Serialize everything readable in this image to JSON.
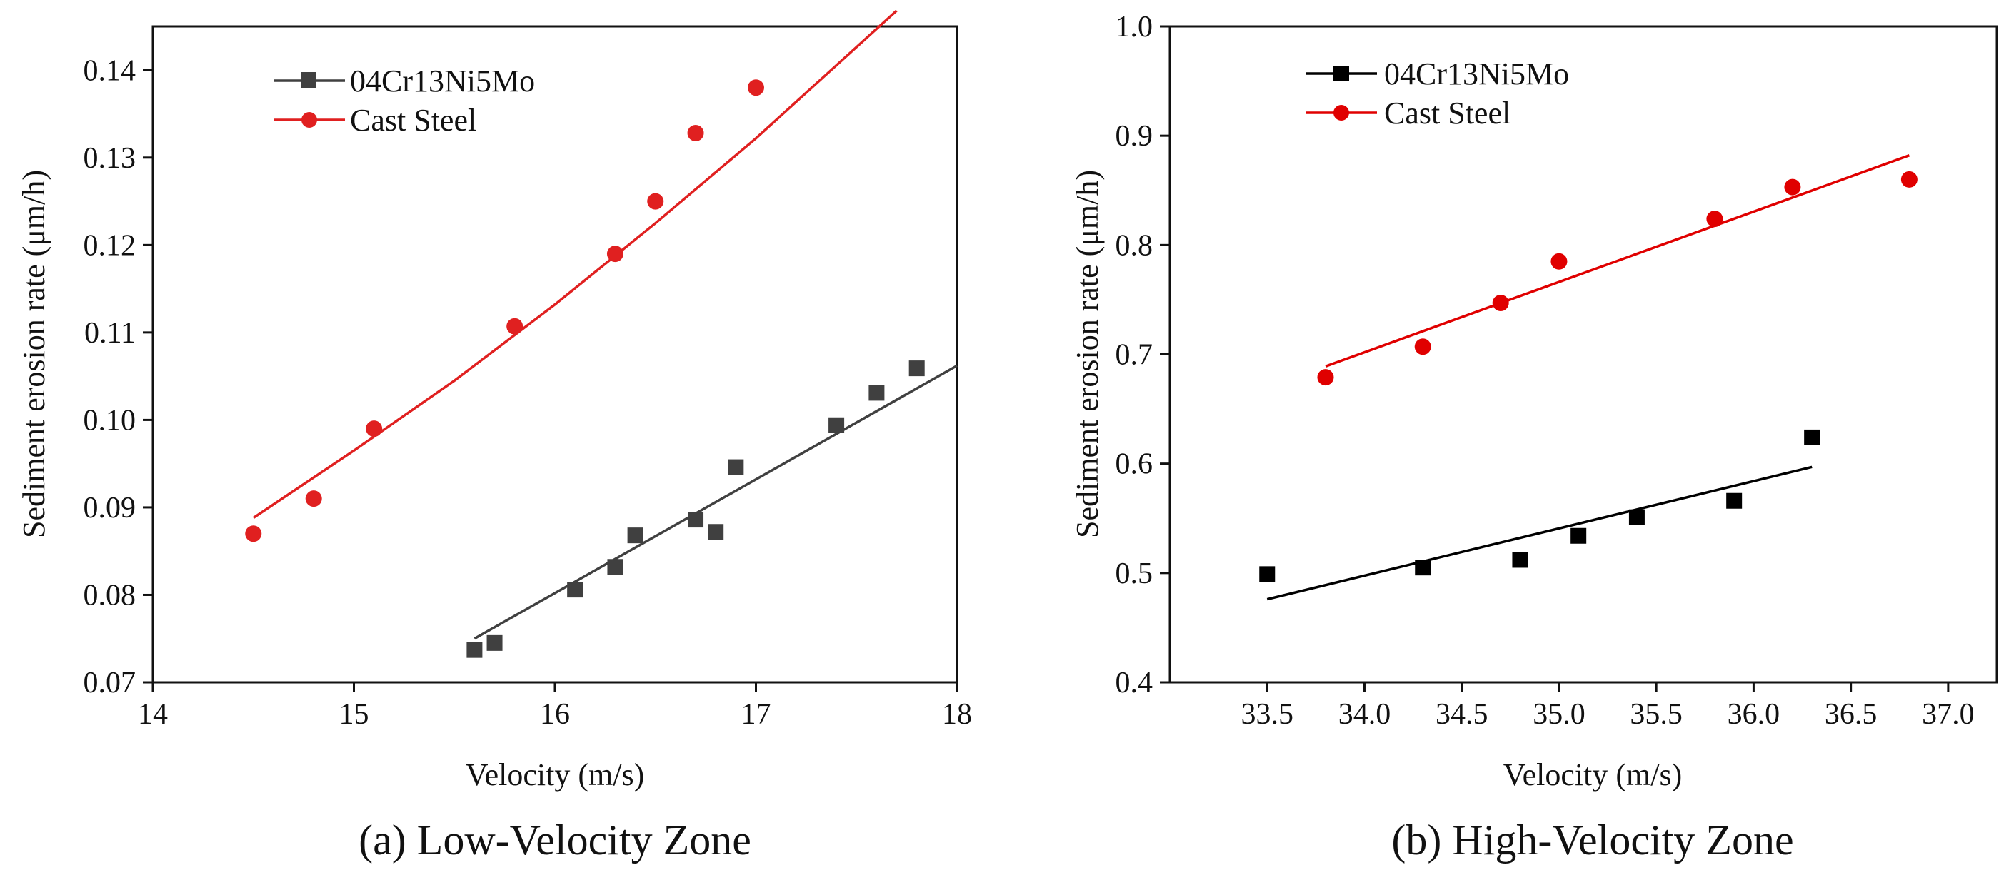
{
  "chart_data": [
    {
      "type": "scatter",
      "caption": "(a) Low-Velocity Zone",
      "xlabel": "Velocity (m/s)",
      "ylabel": "Sediment erosion rate (μm/h)",
      "xlim": [
        14,
        18
      ],
      "ylim": [
        0.07,
        0.145
      ],
      "xticks": [
        14,
        15,
        16,
        17,
        18
      ],
      "xtick_labels": [
        "14",
        "15",
        "16",
        "17",
        "18"
      ],
      "yticks": [
        0.07,
        0.08,
        0.09,
        0.1,
        0.11,
        0.12,
        0.13,
        0.14
      ],
      "ytick_labels": [
        "0.07",
        "0.08",
        "0.09",
        "0.10",
        "0.11",
        "0.12",
        "0.13",
        "0.14"
      ],
      "legend_position": "top-left",
      "series": [
        {
          "name": "04Cr13Ni5Mo",
          "marker": "square",
          "color": "#404040",
          "x": [
            15.6,
            15.7,
            16.1,
            16.3,
            16.4,
            16.7,
            16.8,
            16.9,
            17.4,
            17.6,
            17.8
          ],
          "y": [
            0.0737,
            0.0745,
            0.0806,
            0.0832,
            0.0868,
            0.0886,
            0.0872,
            0.0946,
            0.0994,
            0.1031,
            0.1059
          ],
          "fit": {
            "x": [
              15.6,
              18.0
            ],
            "y": [
              0.075,
              0.1062
            ]
          }
        },
        {
          "name": "Cast Steel",
          "marker": "circle",
          "color": "#e02020",
          "x": [
            14.5,
            14.8,
            15.1,
            15.8,
            16.3,
            16.5,
            16.7,
            17.0
          ],
          "y": [
            0.087,
            0.091,
            0.099,
            0.1107,
            0.119,
            0.125,
            0.1328,
            0.138
          ],
          "fit": {
            "x": [
              14.5,
              15.0,
              15.5,
              16.0,
              16.5,
              17.0,
              17.7
            ],
            "y": [
              0.0888,
              0.0965,
              0.1045,
              0.1132,
              0.1225,
              0.1322,
              0.1468
            ]
          }
        }
      ]
    },
    {
      "type": "scatter",
      "caption": "(b) High-Velocity Zone",
      "xlabel": "Velocity (m/s)",
      "ylabel": "Sediment erosion rate (μm/h)",
      "xlim": [
        33.0,
        37.25
      ],
      "ylim": [
        0.4,
        1.0
      ],
      "xticks": [
        33.5,
        34.0,
        34.5,
        35.0,
        35.5,
        36.0,
        36.5,
        37.0
      ],
      "xtick_labels": [
        "33.5",
        "34.0",
        "34.5",
        "35.0",
        "35.5",
        "36.0",
        "36.5",
        "37.0"
      ],
      "yticks": [
        0.4,
        0.5,
        0.6,
        0.7,
        0.8,
        0.9,
        1.0
      ],
      "ytick_labels": [
        "0.4",
        "0.5",
        "0.6",
        "0.7",
        "0.8",
        "0.9",
        "1.0"
      ],
      "legend_position": "top-left",
      "series": [
        {
          "name": "04Cr13Ni5Mo",
          "marker": "square",
          "color": "#000000",
          "x": [
            33.5,
            34.3,
            34.8,
            35.1,
            35.4,
            35.9,
            36.3
          ],
          "y": [
            0.499,
            0.505,
            0.512,
            0.534,
            0.551,
            0.566,
            0.624
          ],
          "fit": {
            "x": [
              33.5,
              36.3
            ],
            "y": [
              0.476,
              0.597
            ]
          }
        },
        {
          "name": "Cast Steel",
          "marker": "circle",
          "color": "#e00000",
          "x": [
            33.8,
            34.3,
            34.7,
            35.0,
            35.8,
            36.2,
            36.8
          ],
          "y": [
            0.679,
            0.707,
            0.747,
            0.785,
            0.824,
            0.853,
            0.86
          ],
          "fit": {
            "x": [
              33.8,
              36.8
            ],
            "y": [
              0.689,
              0.882
            ]
          }
        }
      ]
    }
  ]
}
